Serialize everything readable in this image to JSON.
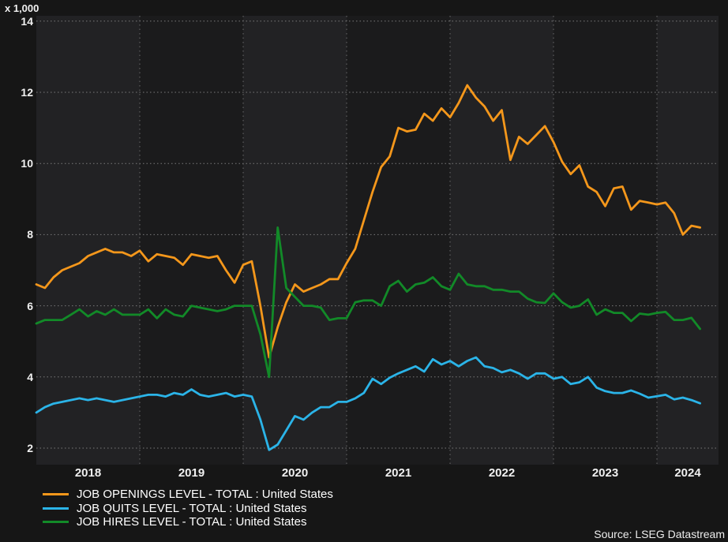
{
  "chart": {
    "units_label": "x 1,000",
    "source": "Source: LSEG Datastream"
  },
  "chart_data": {
    "type": "line",
    "title": "",
    "x_start": "2018-01",
    "frequency": "monthly",
    "x_ticks": [
      "2018",
      "2019",
      "2020",
      "2021",
      "2022",
      "2023",
      "2024"
    ],
    "y_ticks": [
      2,
      4,
      6,
      8,
      10,
      12,
      14
    ],
    "ylim": [
      2,
      14
    ],
    "units": "x 1,000",
    "grid": "dotted",
    "legend_position": "bottom-left",
    "source": "Source: LSEG Datastream",
    "series": [
      {
        "name": "JOB OPENINGS LEVEL - TOTAL : United States",
        "color": "#f4971b",
        "values": [
          6.6,
          6.5,
          6.8,
          7.0,
          7.1,
          7.2,
          7.4,
          7.5,
          7.6,
          7.5,
          7.5,
          7.4,
          7.55,
          7.25,
          7.45,
          7.4,
          7.35,
          7.15,
          7.45,
          7.4,
          7.35,
          7.4,
          7.0,
          6.65,
          7.15,
          7.25,
          6.0,
          4.55,
          5.4,
          6.1,
          6.6,
          6.4,
          6.5,
          6.6,
          6.75,
          6.75,
          7.2,
          7.6,
          8.4,
          9.2,
          9.9,
          10.2,
          11.0,
          10.9,
          10.95,
          11.4,
          11.2,
          11.55,
          11.3,
          11.7,
          12.2,
          11.85,
          11.6,
          11.2,
          11.5,
          10.1,
          10.75,
          10.55,
          10.8,
          11.05,
          10.6,
          10.05,
          9.7,
          9.95,
          9.35,
          9.2,
          8.8,
          9.3,
          9.35,
          8.7,
          8.95,
          8.9,
          8.85,
          8.9,
          8.6,
          8.0,
          8.25,
          8.2
        ]
      },
      {
        "name": "JOB QUITS LEVEL - TOTAL : United States",
        "color": "#2bb4e8",
        "values": [
          3.0,
          3.15,
          3.25,
          3.3,
          3.35,
          3.4,
          3.35,
          3.4,
          3.35,
          3.3,
          3.35,
          3.4,
          3.45,
          3.5,
          3.5,
          3.45,
          3.55,
          3.5,
          3.65,
          3.5,
          3.45,
          3.5,
          3.55,
          3.45,
          3.5,
          3.45,
          2.8,
          1.95,
          2.1,
          2.5,
          2.9,
          2.8,
          3.0,
          3.15,
          3.15,
          3.3,
          3.3,
          3.4,
          3.55,
          3.95,
          3.8,
          3.98,
          4.1,
          4.2,
          4.3,
          4.15,
          4.5,
          4.35,
          4.45,
          4.3,
          4.45,
          4.55,
          4.3,
          4.25,
          4.13,
          4.2,
          4.1,
          3.95,
          4.1,
          4.1,
          3.95,
          4.0,
          3.8,
          3.85,
          4.0,
          3.7,
          3.6,
          3.55,
          3.55,
          3.62,
          3.53,
          3.42,
          3.46,
          3.5,
          3.37,
          3.42,
          3.35,
          3.26
        ]
      },
      {
        "name": "JOB HIRES LEVEL - TOTAL : United States",
        "color": "#128a28",
        "values": [
          5.5,
          5.6,
          5.6,
          5.6,
          5.75,
          5.9,
          5.7,
          5.85,
          5.75,
          5.9,
          5.75,
          5.75,
          5.75,
          5.9,
          5.65,
          5.9,
          5.75,
          5.7,
          6.0,
          5.95,
          5.9,
          5.85,
          5.9,
          6.0,
          6.0,
          6.0,
          5.2,
          4.0,
          8.2,
          6.5,
          6.25,
          6.0,
          6.0,
          5.95,
          5.6,
          5.65,
          5.65,
          6.1,
          6.15,
          6.15,
          6.0,
          6.55,
          6.7,
          6.4,
          6.6,
          6.65,
          6.8,
          6.55,
          6.45,
          6.9,
          6.6,
          6.55,
          6.55,
          6.45,
          6.45,
          6.4,
          6.4,
          6.2,
          6.1,
          6.08,
          6.35,
          6.1,
          5.95,
          6.0,
          6.18,
          5.75,
          5.9,
          5.8,
          5.8,
          5.57,
          5.78,
          5.75,
          5.8,
          5.83,
          5.6,
          5.6,
          5.66,
          5.35
        ]
      }
    ]
  }
}
